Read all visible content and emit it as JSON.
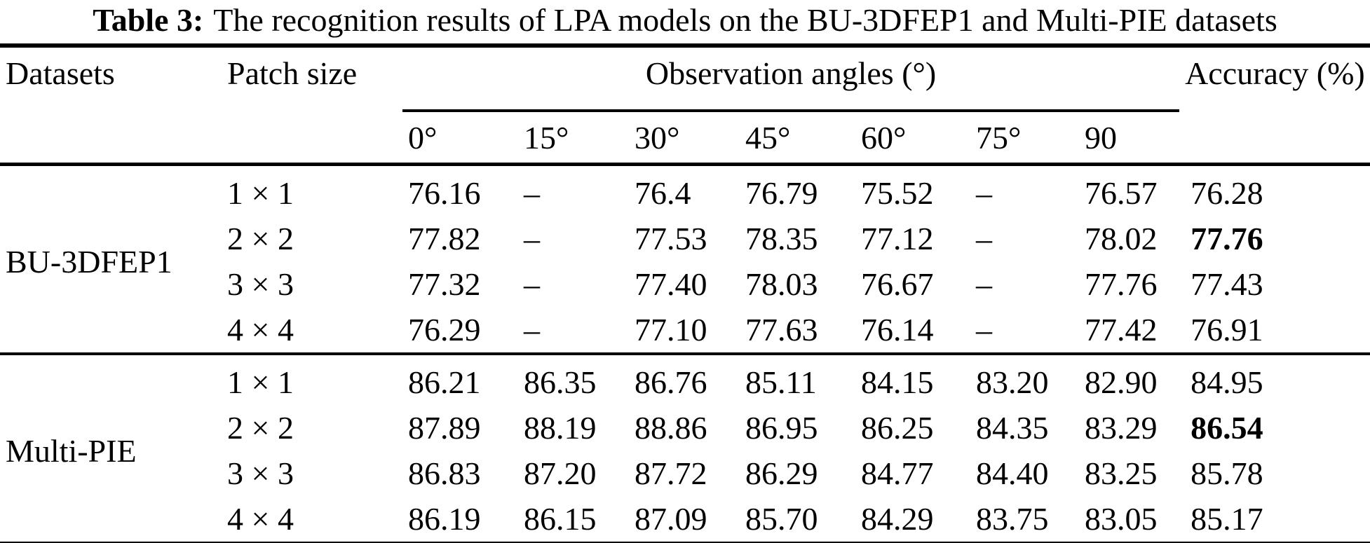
{
  "title": {
    "label": "Table 3:",
    "text": "The recognition results of LPA models on the BU-3DFEP1 and Multi-PIE datasets"
  },
  "table": {
    "col_datasets": "Datasets",
    "col_patch": "Patch size",
    "col_angles_group": "Observation angles (°)",
    "col_accuracy": "Accuracy (%)",
    "angle_headers": [
      "0°",
      "15°",
      "30°",
      "45°",
      "60°",
      "75°",
      "90"
    ],
    "sections": [
      {
        "dataset": "BU-3DFEP1",
        "rows": [
          {
            "patch": "1 × 1",
            "angles": [
              "76.16",
              "–",
              "76.4",
              "76.79",
              "75.52",
              "–",
              "76.57"
            ],
            "accuracy": "76.28",
            "bold": false
          },
          {
            "patch": "2 × 2",
            "angles": [
              "77.82",
              "–",
              "77.53",
              "78.35",
              "77.12",
              "–",
              "78.02"
            ],
            "accuracy": "77.76",
            "bold": true
          },
          {
            "patch": "3 × 3",
            "angles": [
              "77.32",
              "–",
              "77.40",
              "78.03",
              "76.67",
              "–",
              "77.76"
            ],
            "accuracy": "77.43",
            "bold": false
          },
          {
            "patch": "4 × 4",
            "angles": [
              "76.29",
              "–",
              "77.10",
              "77.63",
              "76.14",
              "–",
              "77.42"
            ],
            "accuracy": "76.91",
            "bold": false
          }
        ]
      },
      {
        "dataset": "Multi-PIE",
        "rows": [
          {
            "patch": "1 × 1",
            "angles": [
              "86.21",
              "86.35",
              "86.76",
              "85.11",
              "84.15",
              "83.20",
              "82.90"
            ],
            "accuracy": "84.95",
            "bold": false
          },
          {
            "patch": "2 × 2",
            "angles": [
              "87.89",
              "88.19",
              "88.86",
              "86.95",
              "86.25",
              "84.35",
              "83.29"
            ],
            "accuracy": "86.54",
            "bold": true
          },
          {
            "patch": "3 × 3",
            "angles": [
              "86.83",
              "87.20",
              "87.72",
              "86.29",
              "84.77",
              "84.40",
              "83.25"
            ],
            "accuracy": "85.78",
            "bold": false
          },
          {
            "patch": "4 × 4",
            "angles": [
              "86.19",
              "86.15",
              "87.09",
              "85.70",
              "84.29",
              "83.75",
              "83.05"
            ],
            "accuracy": "85.17",
            "bold": false
          }
        ]
      }
    ]
  }
}
